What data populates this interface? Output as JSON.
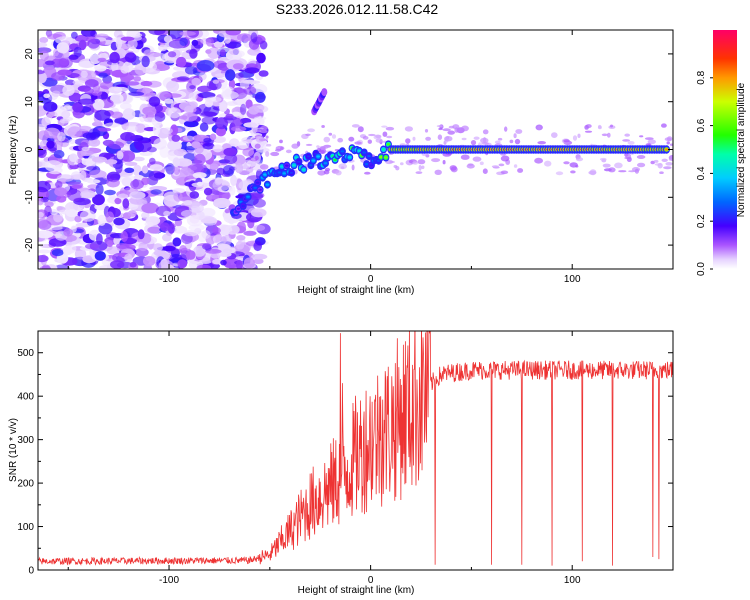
{
  "title": "S233.2026.012.11.58.C42",
  "chart_data": [
    {
      "type": "heatmap",
      "title": "S233.2026.012.11.58.C42",
      "xlabel": "Height of straight line (km)",
      "ylabel": "Frequency (Hz)",
      "xlim": [
        -165,
        150
      ],
      "ylim": [
        -25,
        25
      ],
      "xticks": [
        -100,
        0,
        100
      ],
      "yticks": [
        20,
        10,
        0,
        -10,
        -20
      ],
      "colorbar": {
        "label": "Normalized spectral amplitude",
        "range": [
          0.0,
          1.0
        ],
        "ticks": [
          "0.0",
          "0.2",
          "0.4",
          "0.6",
          "0.8"
        ],
        "tick_values": [
          0.0,
          0.2,
          0.4,
          0.6,
          0.8
        ]
      },
      "noise_region_x": [
        -165,
        -57
      ],
      "dominant_track": [
        {
          "x": -68,
          "y": -12,
          "amp": 0.3
        },
        {
          "x": -62,
          "y": -10,
          "amp": 0.35
        },
        {
          "x": -55,
          "y": -7,
          "amp": 0.4
        },
        {
          "x": -45,
          "y": -4,
          "amp": 0.45
        },
        {
          "x": -35,
          "y": -3,
          "amp": 0.5
        },
        {
          "x": -25,
          "y": -2,
          "amp": 0.55
        },
        {
          "x": -15,
          "y": -1,
          "amp": 0.6
        },
        {
          "x": -5,
          "y": 0,
          "amp": 0.65
        },
        {
          "x": 0,
          "y": -3,
          "amp": 0.5
        },
        {
          "x": 10,
          "y": 0,
          "amp": 0.8
        },
        {
          "x": 40,
          "y": 0,
          "amp": 0.9
        },
        {
          "x": 80,
          "y": 0,
          "amp": 0.9
        },
        {
          "x": 110,
          "y": 0,
          "amp": 0.88
        },
        {
          "x": 148,
          "y": 0,
          "amp": 0.85
        }
      ],
      "secondary_feature": {
        "x": [
          -28,
          -23
        ],
        "y": [
          8,
          12
        ]
      }
    },
    {
      "type": "line",
      "xlabel": "Height of straight line (km)",
      "ylabel": "SNR (10 * v/v)",
      "xlim": [
        -165,
        150
      ],
      "ylim": [
        0,
        550
      ],
      "xticks": [
        -100,
        0,
        100
      ],
      "yticks": [
        0,
        100,
        200,
        300,
        400,
        500
      ],
      "color": "#ee3333",
      "profile": [
        {
          "x": -165,
          "y": 20
        },
        {
          "x": -60,
          "y": 22
        },
        {
          "x": -50,
          "y": 35
        },
        {
          "x": -40,
          "y": 90
        },
        {
          "x": -30,
          "y": 150
        },
        {
          "x": -20,
          "y": 190
        },
        {
          "x": -12,
          "y": 230
        },
        {
          "x": -6,
          "y": 270
        },
        {
          "x": 0,
          "y": 300
        },
        {
          "x": 10,
          "y": 330
        },
        {
          "x": 20,
          "y": 380
        },
        {
          "x": 28,
          "y": 420
        },
        {
          "x": 35,
          "y": 450
        },
        {
          "x": 50,
          "y": 460
        },
        {
          "x": 150,
          "y": 460
        }
      ],
      "dropouts": [
        {
          "x": 32,
          "y": 12
        },
        {
          "x": 60,
          "y": 12
        },
        {
          "x": 75,
          "y": 12
        },
        {
          "x": 90,
          "y": 10
        },
        {
          "x": 105,
          "y": 20
        },
        {
          "x": 120,
          "y": 10
        },
        {
          "x": 140,
          "y": 30
        },
        {
          "x": 143,
          "y": 25
        }
      ],
      "spikes": [
        {
          "x": -15,
          "y": 545
        },
        {
          "x": -14,
          "y": 430
        },
        {
          "x": 5,
          "y": 400
        },
        {
          "x": -5,
          "y": 390
        }
      ]
    }
  ]
}
